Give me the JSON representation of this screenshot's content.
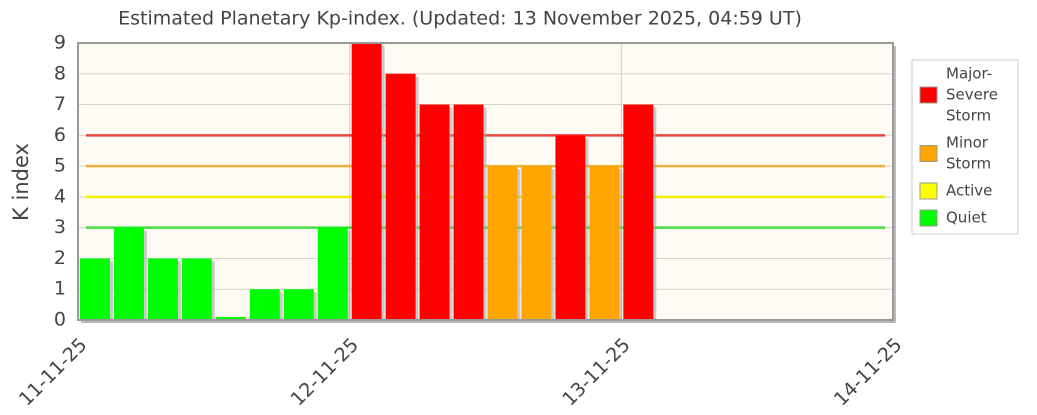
{
  "chart_data": {
    "type": "bar",
    "title": "Estimated Planetary Kp-index. (Updated: 13 November 2025, 04:59 UT)",
    "y_label": "K index",
    "x": [
      0,
      0.125,
      0.25,
      0.375,
      0.5,
      0.625,
      0.75,
      0.875,
      1,
      1.125,
      1.25,
      1.375,
      1.5,
      1.625,
      1.75,
      1.875,
      2
    ],
    "bar_width": 0.125,
    "values": [
      2,
      3,
      2,
      2,
      0.1,
      1,
      1,
      3,
      9,
      8,
      7,
      7,
      5,
      5,
      6,
      5,
      7
    ],
    "colors": [
      "#00ff00",
      "#00ff00",
      "#00ff00",
      "#00ff00",
      "#00ff00",
      "#00ff00",
      "#00ff00",
      "#00ff00",
      "#ff0000",
      "#ff0000",
      "#ff0000",
      "#ff0000",
      "#ffa500",
      "#ffa500",
      "#ff0000",
      "#ffa500",
      "#ff0000"
    ],
    "xlim": [
      0,
      3
    ],
    "xticks": [
      {
        "value": 0,
        "label": "11-11-25"
      },
      {
        "value": 1,
        "label": "12-11-25"
      },
      {
        "value": 2,
        "label": "13-11-25"
      },
      {
        "value": 3,
        "label": "14-11-25"
      }
    ],
    "ylim": [
      0,
      9
    ],
    "yticks": [
      0,
      1,
      2,
      3,
      4,
      5,
      6,
      7,
      8,
      9
    ],
    "grid": true,
    "thresholds": [
      {
        "value": 6,
        "color": "#ee4444"
      },
      {
        "value": 5,
        "color": "#f0b040"
      },
      {
        "value": 4,
        "color": "#f0f000"
      },
      {
        "value": 3,
        "color": "#44dd44"
      }
    ],
    "legend_position": "right",
    "legend": [
      {
        "lines": [
          "Major-",
          "Severe",
          "Storm"
        ],
        "color": "#ff0000"
      },
      {
        "lines": [
          "Minor",
          "Storm"
        ],
        "color": "#ffa500"
      },
      {
        "lines": [
          "Active"
        ],
        "color": "#ffff00"
      },
      {
        "lines": [
          "Quiet"
        ],
        "color": "#00ff00"
      }
    ]
  }
}
